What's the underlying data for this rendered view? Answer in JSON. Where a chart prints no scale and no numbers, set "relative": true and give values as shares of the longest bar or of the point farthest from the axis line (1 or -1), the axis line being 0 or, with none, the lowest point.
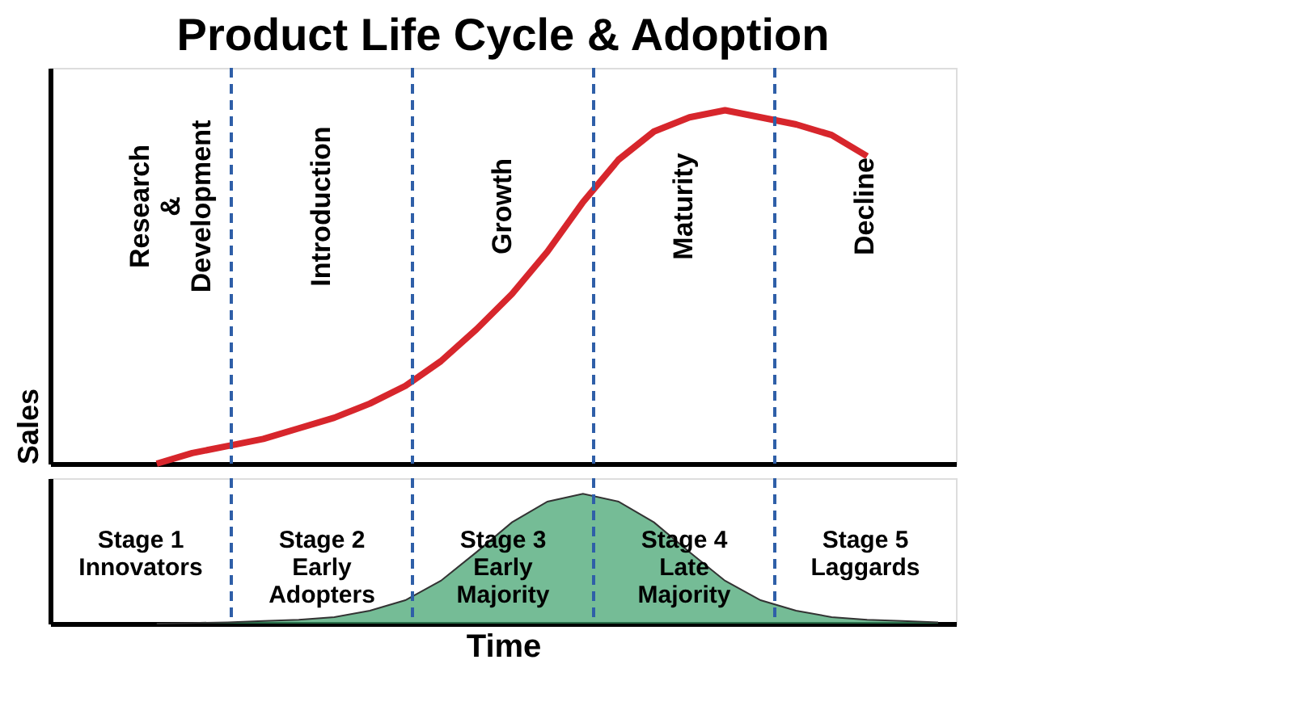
{
  "chart_data": [
    {
      "type": "line",
      "title": "Product Life Cycle & Adoption",
      "ylabel": "Sales",
      "relative": true,
      "color": "#d7262c",
      "categories": [
        null,
        null,
        null,
        null,
        null,
        null,
        null,
        null,
        null,
        null,
        null,
        null,
        null,
        null,
        null,
        null,
        null,
        null,
        null,
        null,
        null,
        null,
        null,
        null,
        null,
        null
      ],
      "values": [
        null,
        null,
        null,
        0,
        0.03,
        0.05,
        0.07,
        0.1,
        0.13,
        0.17,
        0.22,
        0.29,
        0.38,
        0.48,
        0.6,
        0.74,
        0.86,
        0.94,
        0.98,
        1,
        0.98,
        0.96,
        0.93,
        0.87,
        null,
        null
      ],
      "tick_labels": false,
      "grid": false,
      "annotations": [
        "Research\n&\nDevelopment",
        "Introduction",
        "Growth",
        "Maturity",
        "Decline"
      ]
    },
    {
      "type": "area",
      "xlabel": "Time",
      "relative": true,
      "color": "#3aa06a",
      "categories": [
        null,
        null,
        null,
        null,
        null,
        null,
        null,
        null,
        null,
        null,
        null,
        null,
        null,
        null,
        null,
        null,
        null,
        null,
        null,
        null,
        null,
        null,
        null,
        null,
        null,
        null
      ],
      "values": [
        null,
        null,
        null,
        0,
        0.005,
        0.01,
        0.02,
        0.03,
        0.05,
        0.1,
        0.18,
        0.33,
        0.55,
        0.78,
        0.94,
        1,
        0.94,
        0.78,
        0.55,
        0.33,
        0.18,
        0.1,
        0.05,
        0.03,
        0.02,
        0.01
      ],
      "tick_labels": false,
      "grid": false,
      "annotations": [
        "Stage 1\nInnovators",
        "Stage 2\nEarly\nAdopters",
        "Stage 3\nEarly\nMajority",
        "Stage 4\nLate\nMajority",
        "Stage 5\nLaggards"
      ]
    }
  ]
}
